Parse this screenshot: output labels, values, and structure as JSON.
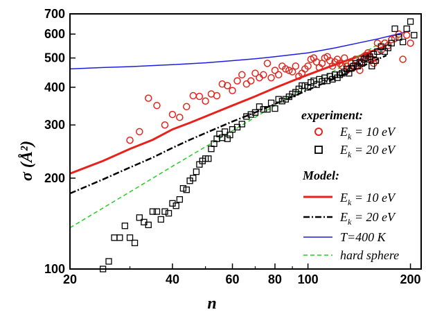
{
  "chart_data": {
    "type": "scatter",
    "xlabel": "n",
    "ylabel": "σ (Å²)",
    "xscale": "log",
    "yscale": "log",
    "xlim": [
      20,
      215
    ],
    "ylim": [
      100,
      700
    ],
    "xticks": [
      20,
      40,
      60,
      80,
      100,
      200
    ],
    "xtick_labels": [
      "20",
      "40",
      "60",
      "80",
      "100",
      "200"
    ],
    "yticks": [
      100,
      200,
      300,
      400,
      500,
      600,
      700
    ],
    "ytick_labels": [
      "100",
      "200",
      "300",
      "400",
      "500",
      "600",
      "700"
    ],
    "legend_placement": "bottom-right",
    "legend": {
      "experiment_title": "experiment:",
      "model_title": "Model:",
      "exp10": {
        "main": "E",
        "sub": "k",
        "rest": " = 10 eV"
      },
      "exp20": {
        "main": "E",
        "sub": "k",
        "rest": " = 20 eV"
      },
      "mod10": {
        "main": "E",
        "sub": "k",
        "rest": " = 10 eV"
      },
      "mod20": {
        "main": "E",
        "sub": "k",
        "rest": " = 20 eV"
      },
      "t400": "T=400 K",
      "hard": "hard sphere"
    },
    "colors": {
      "exp10": "#e8211c",
      "exp20": "#000000",
      "model10": "#e8211c",
      "model20": "#000000",
      "t400": "#1c1ce0",
      "hard": "#22cc22"
    },
    "series": [
      {
        "name": "experiment E_k = 10 eV",
        "marker": "circle",
        "points": [
          [
            30,
            267
          ],
          [
            32,
            285
          ],
          [
            34,
            368
          ],
          [
            36,
            348
          ],
          [
            38,
            300
          ],
          [
            40,
            325
          ],
          [
            42,
            318
          ],
          [
            44,
            345
          ],
          [
            46,
            375
          ],
          [
            48,
            373
          ],
          [
            50,
            360
          ],
          [
            52,
            380
          ],
          [
            54,
            375
          ],
          [
            56,
            410
          ],
          [
            58,
            405
          ],
          [
            60,
            390
          ],
          [
            62,
            420
          ],
          [
            64,
            440
          ],
          [
            66,
            410
          ],
          [
            68,
            420
          ],
          [
            70,
            445
          ],
          [
            72,
            430
          ],
          [
            74,
            440
          ],
          [
            76,
            480
          ],
          [
            78,
            430
          ],
          [
            80,
            455
          ],
          [
            82,
            440
          ],
          [
            84,
            470
          ],
          [
            86,
            460
          ],
          [
            88,
            455
          ],
          [
            90,
            450
          ],
          [
            92,
            470
          ],
          [
            94,
            435
          ],
          [
            96,
            445
          ],
          [
            98,
            460
          ],
          [
            100,
            470
          ],
          [
            102,
            495
          ],
          [
            104,
            500
          ],
          [
            106,
            485
          ],
          [
            108,
            465
          ],
          [
            110,
            480
          ],
          [
            112,
            500
          ],
          [
            114,
            505
          ],
          [
            116,
            490
          ],
          [
            118,
            470
          ],
          [
            120,
            485
          ],
          [
            122,
            495
          ],
          [
            124,
            480
          ],
          [
            126,
            470
          ],
          [
            128,
            500
          ],
          [
            130,
            470
          ],
          [
            132,
            460
          ],
          [
            134,
            480
          ],
          [
            136,
            470
          ],
          [
            138,
            495
          ],
          [
            140,
            470
          ],
          [
            142,
            455
          ],
          [
            144,
            485
          ],
          [
            146,
            495
          ],
          [
            148,
            510
          ],
          [
            150,
            520
          ],
          [
            152,
            505
          ],
          [
            154,
            495
          ],
          [
            156,
            480
          ],
          [
            158,
            490
          ],
          [
            160,
            560
          ],
          [
            164,
            530
          ],
          [
            168,
            560
          ],
          [
            172,
            550
          ],
          [
            176,
            575
          ],
          [
            180,
            580
          ],
          [
            185,
            600
          ],
          [
            190,
            495
          ],
          [
            195,
            595
          ],
          [
            200,
            560
          ]
        ]
      },
      {
        "name": "experiment E_k = 20 eV",
        "marker": "square",
        "points": [
          [
            25,
            100
          ],
          [
            26,
            106
          ],
          [
            27,
            127
          ],
          [
            28,
            127
          ],
          [
            29,
            139
          ],
          [
            30,
            127
          ],
          [
            31,
            122
          ],
          [
            32,
            148
          ],
          [
            33,
            143
          ],
          [
            34,
            140
          ],
          [
            35,
            155
          ],
          [
            36,
            155
          ],
          [
            37,
            146
          ],
          [
            38,
            155
          ],
          [
            39,
            153
          ],
          [
            40,
            165
          ],
          [
            41,
            162
          ],
          [
            42,
            170
          ],
          [
            43,
            185
          ],
          [
            44,
            183
          ],
          [
            45,
            196
          ],
          [
            46,
            200
          ],
          [
            47,
            210
          ],
          [
            48,
            222
          ],
          [
            49,
            228
          ],
          [
            50,
            232
          ],
          [
            51,
            232
          ],
          [
            52,
            250
          ],
          [
            53,
            260
          ],
          [
            54,
            270
          ],
          [
            55,
            280
          ],
          [
            56,
            272
          ],
          [
            57,
            285
          ],
          [
            58,
            270
          ],
          [
            59,
            278
          ],
          [
            60,
            290
          ],
          [
            62,
            295
          ],
          [
            64,
            302
          ],
          [
            66,
            320
          ],
          [
            68,
            325
          ],
          [
            70,
            330
          ],
          [
            72,
            345
          ],
          [
            74,
            338
          ],
          [
            76,
            338
          ],
          [
            78,
            355
          ],
          [
            80,
            340
          ],
          [
            82,
            365
          ],
          [
            84,
            360
          ],
          [
            86,
            365
          ],
          [
            88,
            372
          ],
          [
            90,
            380
          ],
          [
            92,
            385
          ],
          [
            94,
            395
          ],
          [
            96,
            405
          ],
          [
            98,
            405
          ],
          [
            100,
            400
          ],
          [
            102,
            415
          ],
          [
            104,
            420
          ],
          [
            106,
            408
          ],
          [
            108,
            425
          ],
          [
            110,
            418
          ],
          [
            112,
            430
          ],
          [
            114,
            420
          ],
          [
            116,
            435
          ],
          [
            118,
            425
          ],
          [
            120,
            440
          ],
          [
            122,
            430
          ],
          [
            124,
            440
          ],
          [
            126,
            445
          ],
          [
            128,
            450
          ],
          [
            130,
            460
          ],
          [
            132,
            445
          ],
          [
            134,
            462
          ],
          [
            136,
            470
          ],
          [
            138,
            480
          ],
          [
            140,
            470
          ],
          [
            142,
            485
          ],
          [
            144,
            480
          ],
          [
            146,
            495
          ],
          [
            148,
            500
          ],
          [
            150,
            495
          ],
          [
            152,
            505
          ],
          [
            154,
            470
          ],
          [
            156,
            515
          ],
          [
            158,
            490
          ],
          [
            160,
            525
          ],
          [
            164,
            545
          ],
          [
            168,
            525
          ],
          [
            172,
            540
          ],
          [
            176,
            560
          ],
          [
            180,
            625
          ],
          [
            185,
            585
          ],
          [
            190,
            565
          ],
          [
            195,
            625
          ],
          [
            200,
            660
          ],
          [
            205,
            595
          ]
        ]
      },
      {
        "name": "Model E_k = 10 eV",
        "style": "solid",
        "points": [
          [
            20,
            207
          ],
          [
            25,
            228
          ],
          [
            30,
            250
          ],
          [
            35,
            268
          ],
          [
            40,
            290
          ],
          [
            45,
            305
          ],
          [
            50,
            320
          ],
          [
            60,
            348
          ],
          [
            70,
            373
          ],
          [
            80,
            398
          ],
          [
            90,
            420
          ],
          [
            100,
            440
          ],
          [
            120,
            475
          ],
          [
            140,
            505
          ],
          [
            160,
            535
          ],
          [
            170,
            548
          ]
        ]
      },
      {
        "name": "Model E_k = 20 eV",
        "style": "dashdot",
        "points": [
          [
            20,
            178
          ],
          [
            25,
            198
          ],
          [
            30,
            217
          ],
          [
            35,
            234
          ],
          [
            40,
            252
          ],
          [
            45,
            268
          ],
          [
            50,
            282
          ],
          [
            60,
            308
          ],
          [
            70,
            330
          ],
          [
            80,
            352
          ],
          [
            90,
            372
          ],
          [
            100,
            392
          ],
          [
            120,
            428
          ],
          [
            140,
            462
          ],
          [
            160,
            495
          ],
          [
            170,
            510
          ]
        ]
      },
      {
        "name": "T=400 K",
        "style": "solid",
        "points": [
          [
            20,
            460
          ],
          [
            25,
            465
          ],
          [
            30,
            468
          ],
          [
            40,
            475
          ],
          [
            50,
            482
          ],
          [
            60,
            490
          ],
          [
            70,
            497
          ],
          [
            80,
            505
          ],
          [
            100,
            520
          ],
          [
            120,
            540
          ],
          [
            140,
            560
          ],
          [
            160,
            578
          ],
          [
            180,
            597
          ],
          [
            200,
            615
          ]
        ]
      },
      {
        "name": "hard sphere",
        "style": "dashed",
        "points": [
          [
            20,
            137
          ],
          [
            30,
            180
          ],
          [
            40,
            219
          ],
          [
            50,
            254
          ],
          [
            60,
            287
          ],
          [
            70,
            318
          ],
          [
            80,
            348
          ],
          [
            100,
            404
          ],
          [
            120,
            455
          ],
          [
            150,
            530
          ],
          [
            170,
            575
          ]
        ]
      }
    ]
  }
}
